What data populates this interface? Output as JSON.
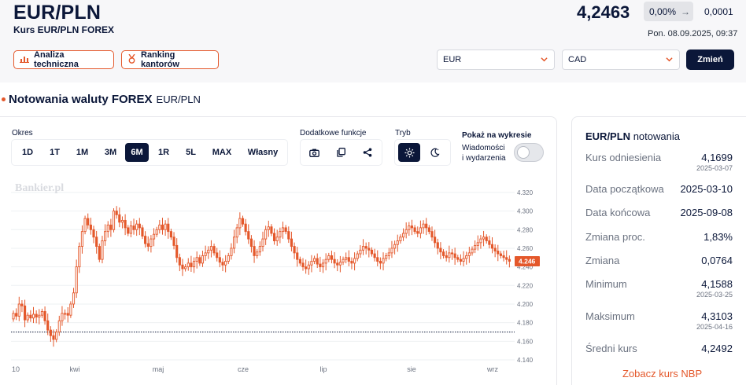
{
  "header": {
    "title": "EUR/PLN",
    "subtitle": "Kurs EUR/PLN FOREX",
    "rate": "4,2463",
    "change_pct": "0,00%",
    "change_abs": "0,0001",
    "timestamp": "Pon. 08.09.2025, 09:37"
  },
  "actions": {
    "analysis_label": "Analiza techniczna",
    "ranking_label": "Ranking kantorów"
  },
  "converter": {
    "from_value": "EUR",
    "to_value": "CAD",
    "submit_label": "Zmień"
  },
  "section": {
    "title": "Notowania waluty FOREX",
    "pair": "EUR/PLN"
  },
  "controls": {
    "period_label": "Okres",
    "periods": [
      "1D",
      "1T",
      "1M",
      "3M",
      "6M",
      "1R",
      "5L",
      "MAX",
      "Własny"
    ],
    "active_period": "6M",
    "extra_label": "Dodatkowe funkcje",
    "mode_label": "Tryb",
    "show_label": "Pokaż na wykresie",
    "news_line1": "Wiadomości",
    "news_line2": "i wydarzenia",
    "icons": [
      "camera-icon",
      "copy-icon",
      "share-icon",
      "sun-icon",
      "moon-icon"
    ]
  },
  "chart_data": {
    "type": "candlestick",
    "watermark": "Bankier.pl",
    "x_labels": [
      "10",
      "kwi",
      "maj",
      "cze",
      "lip",
      "sie",
      "wrz"
    ],
    "y_ticks": [
      "4.320",
      "4.300",
      "4.280",
      "4.260",
      "4.240",
      "4.220",
      "4.200",
      "4.180",
      "4.160",
      "4.140"
    ],
    "ylim": [
      4.14,
      4.325
    ],
    "last_value": "4.246",
    "reference_level": 4.1699,
    "colors": {
      "candle": "#e4582b",
      "grid": "#eef0f3",
      "reference": "#0b1739"
    },
    "closes": [
      4.19,
      4.187,
      4.2,
      4.198,
      4.183,
      4.188,
      4.185,
      4.189,
      4.186,
      4.188,
      4.192,
      4.182,
      4.172,
      4.166,
      4.162,
      4.17,
      4.182,
      4.19,
      4.19,
      4.188,
      4.2,
      4.212,
      4.24,
      4.262,
      4.278,
      4.292,
      4.285,
      4.28,
      4.272,
      4.262,
      4.248,
      4.268,
      4.278,
      4.285,
      4.28,
      4.3,
      4.296,
      4.288,
      4.29,
      4.282,
      4.276,
      4.284,
      4.28,
      4.286,
      4.282,
      4.273,
      4.265,
      4.262,
      4.27,
      4.275,
      4.28,
      4.285,
      4.28,
      4.286,
      4.278,
      4.272,
      4.263,
      4.25,
      4.242,
      4.238,
      4.24,
      4.244,
      4.24,
      4.246,
      4.25,
      4.244,
      4.252,
      4.255,
      4.258,
      4.262,
      4.255,
      4.25,
      4.245,
      4.242,
      4.246,
      4.252,
      4.26,
      4.272,
      4.282,
      4.292,
      4.286,
      4.278,
      4.27,
      4.262,
      4.252,
      4.256,
      4.262,
      4.27,
      4.28,
      4.283,
      4.276,
      4.268,
      4.272,
      4.278,
      4.282,
      4.278,
      4.27,
      4.262,
      4.255,
      4.248,
      4.244,
      4.24,
      4.238,
      4.242,
      4.246,
      4.249,
      4.243,
      4.24,
      4.244,
      4.248,
      4.252,
      4.248,
      4.244,
      4.242,
      4.245,
      4.248,
      4.25,
      4.246,
      4.244,
      4.249,
      4.254,
      4.258,
      4.262,
      4.26,
      4.258,
      4.254,
      4.25,
      4.246,
      4.244,
      4.249,
      4.252,
      4.255,
      4.26,
      4.264,
      4.268,
      4.272,
      4.276,
      4.28,
      4.284,
      4.282,
      4.278,
      4.276,
      4.282,
      4.286,
      4.282,
      4.278,
      4.272,
      4.266,
      4.26,
      4.256,
      4.252,
      4.25,
      4.255,
      4.254,
      4.25,
      4.248,
      4.246,
      4.249,
      4.252,
      4.255,
      4.259,
      4.263,
      4.266,
      4.27,
      4.272,
      4.268,
      4.264,
      4.26,
      4.257,
      4.254,
      4.252,
      4.25,
      4.248,
      4.246
    ]
  },
  "stats": {
    "head_pair": "EUR/PLN",
    "head_text": "notowania",
    "rows": [
      {
        "label": "Kurs odniesienia",
        "value": "4,1699",
        "date": "2025-03-07"
      },
      {
        "label": "Data początkowa",
        "value": "2025-03-10",
        "date": ""
      },
      {
        "label": "Data końcowa",
        "value": "2025-09-08",
        "date": ""
      },
      {
        "label": "Zmiana proc.",
        "value": "1,83%",
        "date": ""
      },
      {
        "label": "Zmiana",
        "value": "0,0764",
        "date": ""
      },
      {
        "label": "Minimum",
        "value": "4,1588",
        "date": "2025-03-25"
      },
      {
        "label": "Maksimum",
        "value": "4,3103",
        "date": "2025-04-16"
      },
      {
        "label": "Średni kurs",
        "value": "4,2492",
        "date": ""
      }
    ],
    "nbp_link": "Zobacz kurs NBP"
  }
}
